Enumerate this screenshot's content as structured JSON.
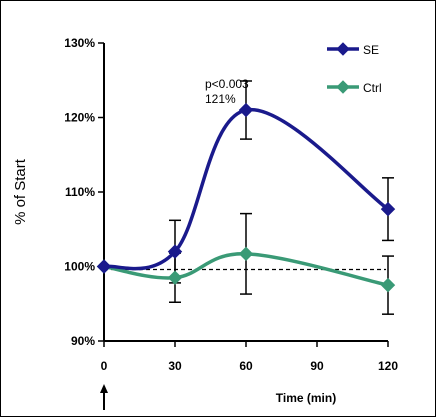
{
  "chart_data": {
    "type": "line",
    "xlabel": "Time (min)",
    "ylabel": "% of Start",
    "x_ticks": [
      0,
      30,
      60,
      90,
      120
    ],
    "x_tick_labels": [
      "0",
      "30",
      "60",
      "90",
      "120"
    ],
    "xlim": [
      0,
      120
    ],
    "ylim": [
      90,
      130
    ],
    "y_ticks": [
      90,
      100,
      110,
      120,
      130
    ],
    "y_tick_labels": [
      "90%",
      "100%",
      "110%",
      "120%",
      "130%"
    ],
    "baseline": 99.6,
    "series": [
      {
        "name": "SE",
        "color": "#1a1a8c",
        "marker": "diamond",
        "x": [
          0,
          30,
          60,
          120
        ],
        "y": [
          100,
          102,
          121,
          107.7
        ],
        "error": [
          0,
          4.2,
          3.9,
          4.2
        ]
      },
      {
        "name": "Ctrl",
        "color": "#3a9a76",
        "marker": "diamond",
        "x": [
          0,
          30,
          60,
          120
        ],
        "y": [
          100,
          98.5,
          101.7,
          97.5
        ],
        "error": [
          0,
          3.3,
          5.4,
          3.9
        ]
      }
    ],
    "annotations": [
      {
        "lines": [
          "p<0.003",
          "121%"
        ],
        "x": 60,
        "y": 121
      }
    ],
    "marker_icon": "up-arrow-icon",
    "legend_position": "top-right"
  }
}
